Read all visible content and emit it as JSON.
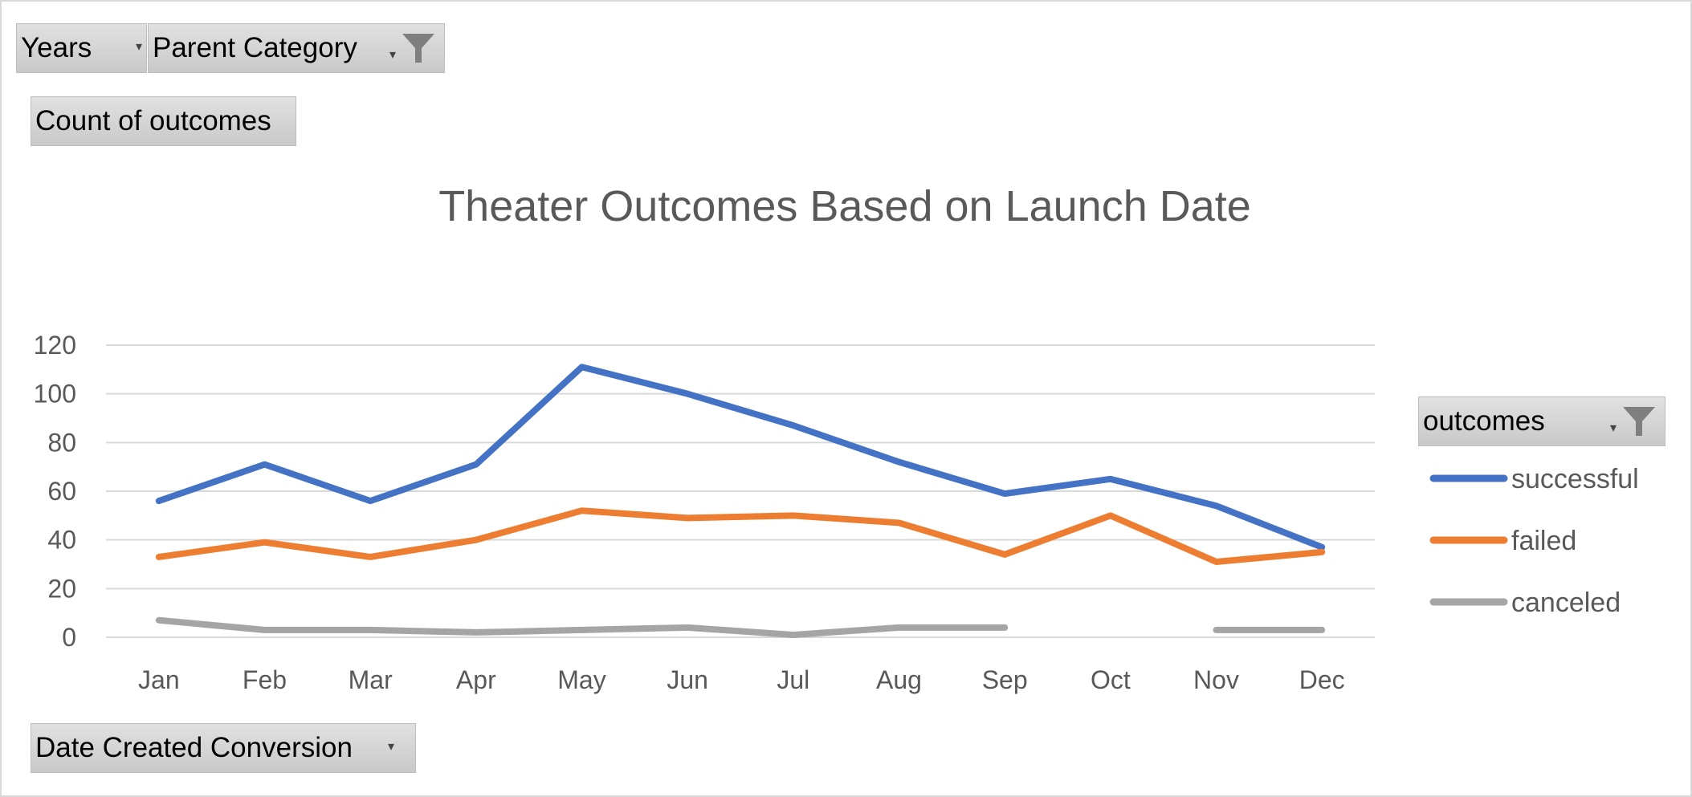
{
  "pivot": {
    "years_label": "Years",
    "parent_category_label": "Parent Category",
    "values_label": "Count of outcomes",
    "axis_field_label": "Date Created Conversion",
    "legend_field_label": "outcomes"
  },
  "chart_data": {
    "type": "line",
    "title": "Theater Outcomes Based on Launch Date",
    "xlabel": "",
    "ylabel": "",
    "categories": [
      "Jan",
      "Feb",
      "Mar",
      "Apr",
      "May",
      "Jun",
      "Jul",
      "Aug",
      "Sep",
      "Oct",
      "Nov",
      "Dec"
    ],
    "ylim": [
      0,
      120
    ],
    "yticks": [
      0,
      20,
      40,
      60,
      80,
      100,
      120
    ],
    "grid": true,
    "legend_position": "right",
    "series": [
      {
        "name": "successful",
        "color": "#4472C4",
        "values": [
          56,
          71,
          56,
          71,
          111,
          100,
          87,
          72,
          59,
          65,
          54,
          37
        ]
      },
      {
        "name": "failed",
        "color": "#ED7D31",
        "values": [
          33,
          39,
          33,
          40,
          52,
          49,
          50,
          47,
          34,
          50,
          31,
          35
        ]
      },
      {
        "name": "canceled",
        "color": "#A5A5A5",
        "values": [
          7,
          3,
          3,
          2,
          3,
          4,
          1,
          4,
          4,
          null,
          3,
          3
        ]
      }
    ]
  }
}
